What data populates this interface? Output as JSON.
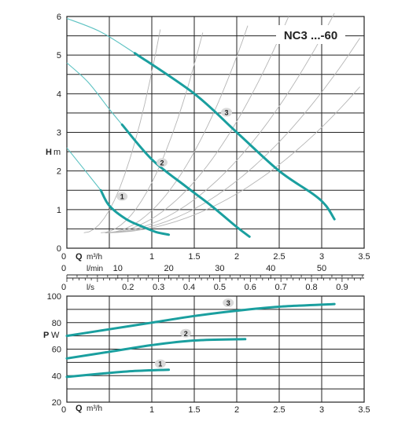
{
  "colors": {
    "curve": "#1a9f9f",
    "curve_thin": "#5cc2c2",
    "grid": "#222222",
    "system_curve": "#b5b5b5",
    "badge": "#d9d9d9"
  },
  "chart_data": [
    {
      "type": "line",
      "title": "NC3 ...-60",
      "xlabel": "Q",
      "xunit": "m³/h",
      "ylabel": "H",
      "yunit": "m",
      "xlim": [
        0,
        3.5
      ],
      "ylim": [
        0,
        6
      ],
      "x_ticks": [
        {
          "v": 0,
          "t": "0"
        },
        {
          "v": 1,
          "t": "1"
        },
        {
          "v": 1.5,
          "t": "1.5"
        },
        {
          "v": 2,
          "t": "2"
        },
        {
          "v": 2.5,
          "t": "2.5"
        },
        {
          "v": 3,
          "t": "3"
        },
        {
          "v": 3.5,
          "t": "3.5"
        }
      ],
      "y_ticks": [
        {
          "v": 0,
          "t": "0"
        },
        {
          "v": 1,
          "t": "1"
        },
        {
          "v": 2,
          "t": "2"
        },
        {
          "v": 3,
          "t": "3"
        },
        {
          "v": 4,
          "t": "4"
        },
        {
          "v": 5,
          "t": "5"
        },
        {
          "v": 6,
          "t": "6"
        }
      ],
      "secondary_axes": [
        {
          "unit": "l/min",
          "per_q": 16.667,
          "labels": [
            {
              "v": 0,
              "t": "0"
            },
            {
              "v": 10,
              "t": "10"
            },
            {
              "v": 20,
              "t": "20"
            },
            {
              "v": 30,
              "t": "30"
            },
            {
              "v": 40,
              "t": "40"
            },
            {
              "v": 50,
              "t": "50"
            }
          ]
        },
        {
          "unit": "l/s",
          "per_q": 0.27778,
          "labels": [
            {
              "v": 0,
              "t": "0"
            },
            {
              "v": 0.2,
              "t": "0.2"
            },
            {
              "v": 0.3,
              "t": "0.3"
            },
            {
              "v": 0.4,
              "t": "0.4"
            },
            {
              "v": 0.5,
              "t": "0.5"
            },
            {
              "v": 0.6,
              "t": "0.6"
            },
            {
              "v": 0.7,
              "t": "0.7"
            },
            {
              "v": 0.8,
              "t": "0.8"
            },
            {
              "v": 0.9,
              "t": "0.9"
            }
          ]
        }
      ],
      "series": [
        {
          "label": "1",
          "thin": [
            [
              0,
              2.6
            ],
            [
              0.2,
              2.05
            ],
            [
              0.4,
              1.5
            ]
          ],
          "thick": [
            [
              0.4,
              1.5
            ],
            [
              0.5,
              1.1
            ],
            [
              0.7,
              0.75
            ],
            [
              0.9,
              0.55
            ],
            [
              1.05,
              0.42
            ],
            [
              1.2,
              0.35
            ]
          ],
          "badge_at": [
            0.65,
            1.34
          ]
        },
        {
          "label": "2",
          "thin": [
            [
              0,
              4.8
            ],
            [
              0.25,
              4.3
            ],
            [
              0.5,
              3.6
            ],
            [
              0.65,
              3.2
            ]
          ],
          "thick": [
            [
              0.65,
              3.2
            ],
            [
              1.0,
              2.3
            ],
            [
              1.4,
              1.6
            ],
            [
              1.7,
              1.1
            ],
            [
              2.0,
              0.55
            ],
            [
              2.15,
              0.3
            ]
          ],
          "badge_at": [
            1.12,
            2.22
          ]
        },
        {
          "label": "3",
          "thin": [
            [
              0,
              5.95
            ],
            [
              0.4,
              5.6
            ],
            [
              0.8,
              5.05
            ]
          ],
          "thick": [
            [
              0.8,
              5.05
            ],
            [
              1.5,
              4.0
            ],
            [
              2.0,
              3.0
            ],
            [
              2.5,
              2.0
            ],
            [
              2.9,
              1.4
            ],
            [
              3.05,
              1.1
            ],
            [
              3.15,
              0.75
            ]
          ],
          "badge_at": [
            1.88,
            3.52
          ]
        }
      ],
      "system_curves": [
        {
          "x0": 0.2,
          "k": 6.5
        },
        {
          "x0": 0.4,
          "k": 3.6
        },
        {
          "x0": 0.45,
          "k": 1.9
        },
        {
          "x0": 0.45,
          "k": 1.2
        },
        {
          "x0": 0.45,
          "k": 0.78
        },
        {
          "x0": 0.45,
          "k": 0.56
        },
        {
          "x0": 0.45,
          "k": 0.42
        }
      ],
      "grid": true
    },
    {
      "type": "line",
      "xlabel": "Q",
      "xunit": "m³/h",
      "ylabel": "P",
      "yunit": "W",
      "xlim": [
        0,
        3.5
      ],
      "ylim": [
        20,
        100
      ],
      "x_ticks": [
        {
          "v": 0,
          "t": "0"
        },
        {
          "v": 1,
          "t": "1"
        },
        {
          "v": 1.5,
          "t": "1.5"
        },
        {
          "v": 2,
          "t": "2"
        },
        {
          "v": 2.5,
          "t": "2.5"
        },
        {
          "v": 3,
          "t": "3"
        },
        {
          "v": 3.5,
          "t": "3.5"
        }
      ],
      "y_ticks": [
        {
          "v": 20,
          "t": "20"
        },
        {
          "v": 40,
          "t": "40"
        },
        {
          "v": 60,
          "t": "60"
        },
        {
          "v": 80,
          "t": "80"
        },
        {
          "v": 100,
          "t": "100"
        }
      ],
      "series": [
        {
          "label": "1",
          "points": [
            [
              0,
              39
            ],
            [
              0.4,
              41.5
            ],
            [
              0.8,
              43.5
            ],
            [
              1.2,
              44.5
            ]
          ],
          "badge_at": [
            1.1,
            49
          ]
        },
        {
          "label": "2",
          "points": [
            [
              0,
              53
            ],
            [
              0.5,
              58
            ],
            [
              1.0,
              63
            ],
            [
              1.5,
              66.5
            ],
            [
              2.1,
              67.5
            ]
          ],
          "badge_at": [
            1.4,
            72
          ]
        },
        {
          "label": "3",
          "points": [
            [
              0,
              70
            ],
            [
              0.5,
              75
            ],
            [
              1.0,
              80
            ],
            [
              1.5,
              85
            ],
            [
              2.0,
              89
            ],
            [
              2.5,
              92
            ],
            [
              3.15,
              94
            ]
          ],
          "badge_at": [
            1.9,
            95
          ]
        }
      ],
      "grid": true
    }
  ]
}
